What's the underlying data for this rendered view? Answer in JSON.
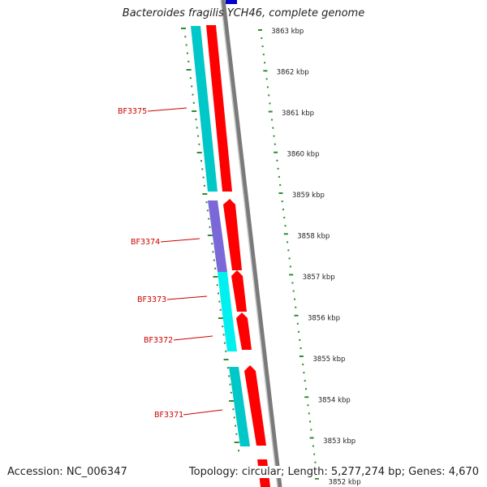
{
  "title": "Bacteroides fragilis YCH46, complete genome",
  "footer": {
    "accession": "Accession: NC_006347",
    "summary": "Topology: circular; Length: 5,277,274 bp; Genes: 4,670"
  },
  "colors": {
    "axis": "#808080",
    "ticks": "#2e8b2e",
    "gene_label": "#cc0000",
    "forward_strand": "#ff0000",
    "cds_cyan": "#00c8c8",
    "cds_bright_cyan": "#00f0f0",
    "cds_purple": "#7b68d8",
    "top_marker": "#0000cc"
  },
  "scale": {
    "unit": "kbp",
    "labels": [
      "3863 kbp",
      "3862 kbp",
      "3861 kbp",
      "3860 kbp",
      "3859 kbp",
      "3858 kbp",
      "3857 kbp",
      "3856 kbp",
      "3855 kbp",
      "3854 kbp",
      "3853 kbp",
      "3852 kbp"
    ]
  },
  "genes": [
    {
      "label": "BF3375"
    },
    {
      "label": "BF3374"
    },
    {
      "label": "BF3373"
    },
    {
      "label": "BF3372"
    },
    {
      "label": "BF3371"
    }
  ]
}
